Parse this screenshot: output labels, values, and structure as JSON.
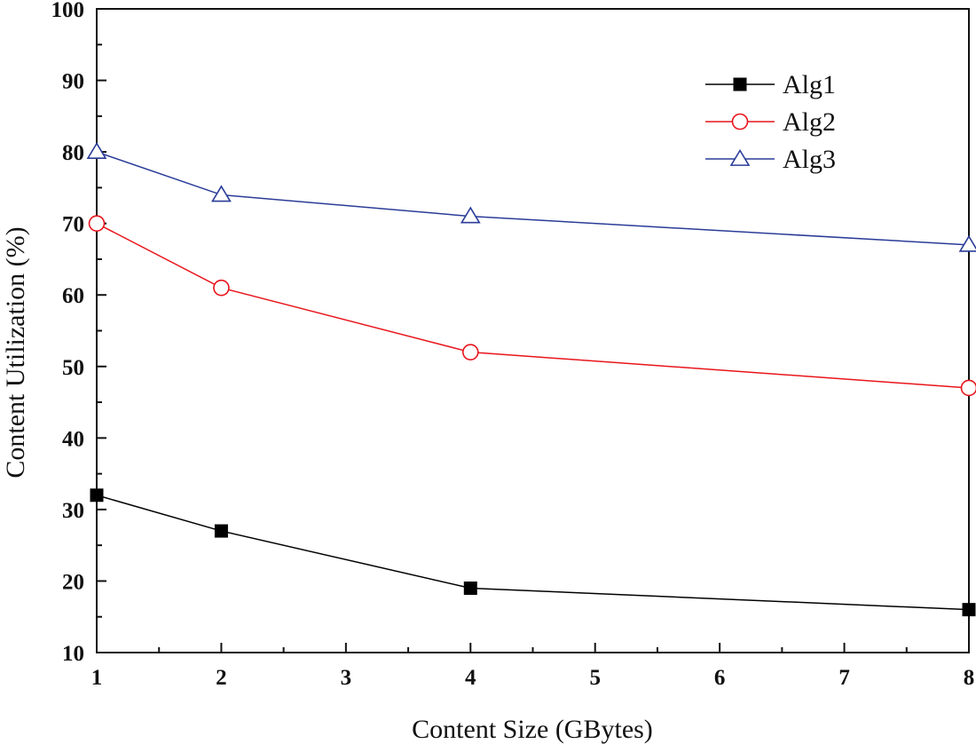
{
  "chart_data": {
    "type": "line",
    "title": "",
    "xlabel": "Content Size (GBytes)",
    "ylabel": "Content Utilization (%)",
    "xlim": [
      1,
      8
    ],
    "ylim": [
      10,
      100
    ],
    "x_ticks": [
      "1",
      "2",
      "3",
      "4",
      "5",
      "6",
      "7",
      "8"
    ],
    "y_ticks": [
      "10",
      "20",
      "30",
      "40",
      "50",
      "60",
      "70",
      "80",
      "90",
      "100"
    ],
    "grid": false,
    "legend_position": "top-right",
    "series": [
      {
        "name": "Alg1",
        "color": "#000000",
        "marker": "filled-square",
        "x": [
          1,
          2,
          4,
          8
        ],
        "values": [
          32,
          27,
          19,
          16
        ]
      },
      {
        "name": "Alg2",
        "color": "#e8151b",
        "marker": "open-circle",
        "x": [
          1,
          2,
          4,
          8
        ],
        "values": [
          70,
          61,
          52,
          47
        ]
      },
      {
        "name": "Alg3",
        "color": "#2a3c98",
        "marker": "open-triangle",
        "x": [
          1,
          2,
          4,
          8
        ],
        "values": [
          80,
          74,
          71,
          67
        ]
      }
    ]
  }
}
